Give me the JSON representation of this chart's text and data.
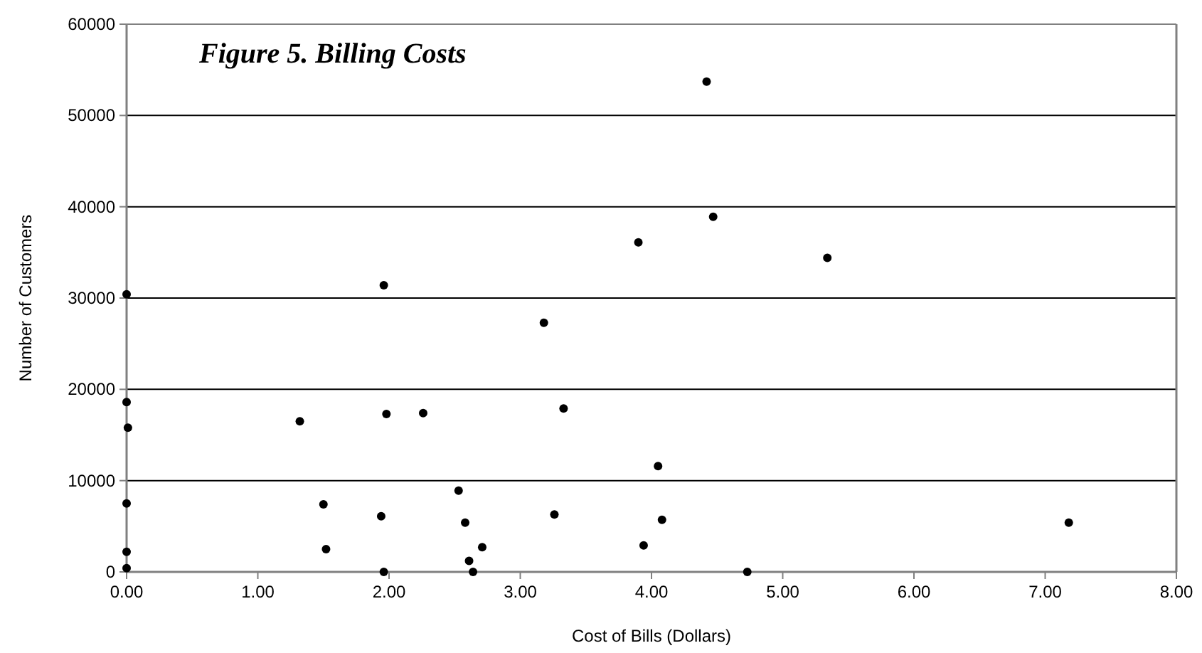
{
  "chart_data": {
    "type": "scatter",
    "title": "Figure 5. Billing Costs",
    "xlabel": "Cost of Bills (Dollars)",
    "ylabel": "Number of Customers",
    "xlim": [
      0,
      8
    ],
    "xticks": [
      {
        "value": 0,
        "label": "0.00"
      },
      {
        "value": 1,
        "label": "1.00"
      },
      {
        "value": 2,
        "label": "2.00"
      },
      {
        "value": 3,
        "label": "3.00"
      },
      {
        "value": 4,
        "label": "4.00"
      },
      {
        "value": 5,
        "label": "5.00"
      },
      {
        "value": 6,
        "label": "6.00"
      },
      {
        "value": 7,
        "label": "7.00"
      },
      {
        "value": 8,
        "label": "8.00"
      }
    ],
    "ylim": [
      0,
      60000
    ],
    "yticks": [
      0,
      10000,
      20000,
      30000,
      40000,
      50000,
      60000
    ],
    "grid": "y",
    "marker": "circle",
    "series": [
      {
        "color": "#000000",
        "x": [
          0,
          1.96,
          3.18,
          3.9,
          4.42,
          4.47,
          5.34,
          0,
          0.01,
          1.32,
          1.98,
          2.26,
          3.33,
          0,
          1.5,
          1.94,
          2.53,
          2.58,
          3.26,
          0,
          1.52,
          2.71,
          3.94,
          0,
          1.96,
          2.61,
          2.64,
          4.05,
          4.08,
          4.73,
          7.18
        ],
        "values": [
          30400,
          31400,
          27300,
          36100,
          53700,
          38900,
          34400,
          18600,
          15800,
          16500,
          17300,
          17400,
          17900,
          7500,
          7400,
          6100,
          8900,
          5400,
          6300,
          2200,
          2500,
          2700,
          2900,
          400,
          0,
          1200,
          0,
          11600,
          5700,
          0,
          5400
        ]
      }
    ]
  }
}
